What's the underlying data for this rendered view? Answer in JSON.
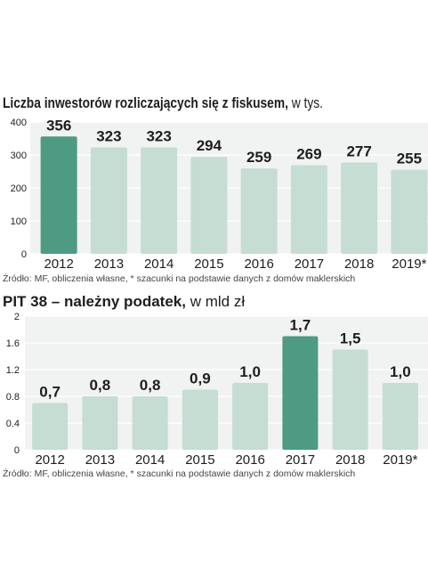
{
  "colors": {
    "bar": "#c5ddd3",
    "highlight": "#4f9a83",
    "background_band": "#f1f2f2",
    "grid": "#ffffff",
    "text": "#1e1e1e",
    "source_text": "#444444"
  },
  "chart_data": [
    {
      "type": "bar",
      "title": "Liczba inwestorów rozliczających się z fiskusem,",
      "unit": "w tys.",
      "categories": [
        "2012",
        "2013",
        "2014",
        "2015",
        "2016",
        "2017",
        "2018",
        "2019*"
      ],
      "values": [
        356,
        323,
        323,
        294,
        259,
        269,
        277,
        255
      ],
      "value_labels": [
        "356",
        "323",
        "323",
        "294",
        "259",
        "269",
        "277",
        "255"
      ],
      "highlight_index": 0,
      "yticks": [
        "0",
        "100",
        "200",
        "300",
        "400"
      ],
      "ylim": [
        0,
        400
      ],
      "grid": true,
      "legend": "none",
      "source": "Źródło: MF, obliczenia własne, * szacunki na podstawie danych z domów maklerskich"
    },
    {
      "type": "bar",
      "title": "PIT 38 – należny podatek,",
      "unit": "w mld zł",
      "categories": [
        "2012",
        "2013",
        "2014",
        "2015",
        "2016",
        "2017",
        "2018",
        "2019*"
      ],
      "values": [
        0.7,
        0.8,
        0.8,
        0.9,
        1.0,
        1.7,
        1.5,
        1.0
      ],
      "value_labels": [
        "0,7",
        "0,8",
        "0,8",
        "0,9",
        "1,0",
        "1,7",
        "1,5",
        "1,0"
      ],
      "highlight_index": 5,
      "yticks": [
        "0",
        "0.4",
        "0.8",
        "1.2",
        "1.6",
        "2"
      ],
      "ylim": [
        0,
        2
      ],
      "grid": true,
      "legend": "none",
      "source": "Źródło: MF, obliczenia własne, * szacunki na podstawie danych z domów maklerskich"
    }
  ]
}
